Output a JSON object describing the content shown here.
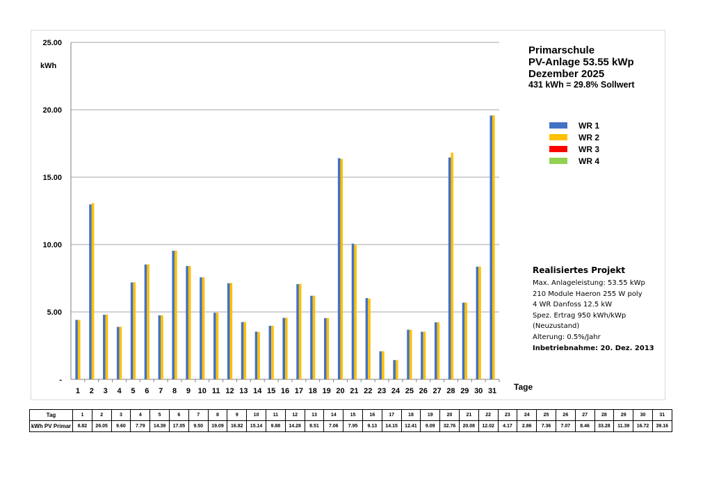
{
  "title": {
    "line1": "Primarschule",
    "line2": "PV-Anlage 53.55 kWp",
    "line3": "Dezember 2025",
    "line4": "431 kWh = 29.8% Sollwert"
  },
  "legend": [
    {
      "label": "WR 1",
      "color": "#4472C4"
    },
    {
      "label": "WR 2",
      "color": "#FFC000"
    },
    {
      "label": "WR 3",
      "color": "#FF0000"
    },
    {
      "label": "WR 4",
      "color": "#92D050"
    }
  ],
  "project": {
    "heading": "Realisiertes Projekt",
    "lines": [
      "Max. Anlageleistung: 53.55 kWp",
      "210 Module Haeron 255 W poly",
      "4 WR Danfoss 12.5 kW",
      "Spez. Ertrag 950 kWh/kWp",
      "(Neuzustand)",
      "Alterung: 0.5%/Jahr"
    ],
    "commissioning": "Inbetriebnahme: 20. Dez. 2013"
  },
  "chart_data": {
    "type": "bar",
    "ylabel": "kWh",
    "xlabel": "Tage",
    "ylim": [
      0,
      25
    ],
    "ytick_labels": [
      "-",
      "5.00",
      "10.00",
      "15.00",
      "20.00",
      "25.00"
    ],
    "grid": true,
    "legend_position": "right",
    "categories": [
      "1",
      "2",
      "3",
      "4",
      "5",
      "6",
      "7",
      "8",
      "9",
      "10",
      "11",
      "12",
      "13",
      "14",
      "15",
      "16",
      "17",
      "18",
      "19",
      "20",
      "21",
      "22",
      "23",
      "24",
      "25",
      "26",
      "27",
      "28",
      "29",
      "30",
      "31"
    ],
    "series": [
      {
        "name": "WR 1",
        "color": "#4472C4",
        "values": [
          4.41,
          12.98,
          4.79,
          3.89,
          7.19,
          8.52,
          4.75,
          9.54,
          8.41,
          7.57,
          4.94,
          7.13,
          4.25,
          3.54,
          3.97,
          4.56,
          7.06,
          6.2,
          4.54,
          16.41,
          10.07,
          6.03,
          2.08,
          1.43,
          3.68,
          3.53,
          4.23,
          16.46,
          5.69,
          8.36,
          19.57
        ]
      },
      {
        "name": "WR 2",
        "color": "#FFC000",
        "values": [
          4.41,
          13.07,
          4.81,
          3.9,
          7.2,
          8.53,
          4.75,
          9.55,
          8.41,
          7.57,
          4.94,
          7.15,
          4.26,
          3.52,
          3.98,
          4.57,
          7.09,
          6.21,
          4.55,
          16.35,
          10.01,
          5.99,
          2.09,
          1.43,
          3.68,
          3.54,
          4.23,
          16.82,
          5.7,
          8.36,
          19.59
        ]
      },
      {
        "name": "WR 3",
        "color": "#FF0000",
        "values": [
          0,
          0,
          0,
          0,
          0,
          0,
          0,
          0,
          0,
          0,
          0,
          0,
          0,
          0,
          0,
          0,
          0,
          0,
          0,
          0,
          0,
          0,
          0,
          0,
          0,
          0,
          0,
          0,
          0,
          0,
          0
        ]
      },
      {
        "name": "WR 4",
        "color": "#92D050",
        "values": [
          0,
          0,
          0,
          0,
          0,
          0,
          0,
          0,
          0,
          0,
          0,
          0,
          0,
          0,
          0,
          0,
          0,
          0,
          0,
          0,
          0,
          0,
          0,
          0,
          0,
          0,
          0,
          0,
          0,
          0,
          0
        ]
      }
    ]
  },
  "table": {
    "row1_label": "Tag",
    "row2_label": "kWh PV Primar",
    "days": [
      "1",
      "2",
      "3",
      "4",
      "5",
      "6",
      "7",
      "8",
      "9",
      "10",
      "11",
      "12",
      "13",
      "14",
      "15",
      "16",
      "17",
      "18",
      "19",
      "20",
      "21",
      "22",
      "23",
      "24",
      "25",
      "26",
      "27",
      "28",
      "29",
      "30",
      "31"
    ],
    "kwh": [
      "8.82",
      "26.05",
      "9.60",
      "7.79",
      "14.39",
      "17.05",
      "9.50",
      "19.09",
      "16.82",
      "15.14",
      "9.88",
      "14.28",
      "8.51",
      "7.06",
      "7.95",
      "9.13",
      "14.15",
      "12.41",
      "9.09",
      "32.76",
      "20.08",
      "12.02",
      "4.17",
      "2.86",
      "7.36",
      "7.07",
      "8.46",
      "33.28",
      "11.39",
      "16.72",
      "39.16"
    ]
  }
}
